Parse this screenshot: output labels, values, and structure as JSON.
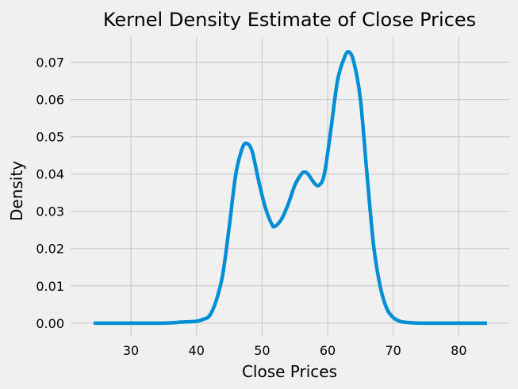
{
  "chart_data": {
    "type": "line",
    "title": "Kernel Density Estimate of Close Prices",
    "xlabel": "Close Prices",
    "ylabel": "Density",
    "xlim": [
      20.8,
      87.7
    ],
    "ylim": [
      -0.00365,
      0.0767
    ],
    "x_ticks": [
      30,
      40,
      50,
      60,
      70,
      80
    ],
    "x_tick_labels": [
      "30",
      "40",
      "50",
      "60",
      "70",
      "80"
    ],
    "y_ticks": [
      0.0,
      0.01,
      0.02,
      0.03,
      0.04,
      0.05,
      0.06,
      0.07
    ],
    "y_tick_labels": [
      "0.00",
      "0.01",
      "0.02",
      "0.03",
      "0.04",
      "0.05",
      "0.06",
      "0.07"
    ],
    "grid": true,
    "series": [
      {
        "color": "#008fd5",
        "x": [
          24.3,
          30,
          35,
          38,
          40,
          41,
          42,
          43,
          44,
          45,
          46,
          47,
          47.7,
          48.5,
          49.5,
          50.5,
          51.5,
          52,
          53,
          54,
          55,
          56,
          56.5,
          57,
          58,
          58.7,
          59.5,
          60.5,
          61.5,
          62.5,
          63.2,
          64,
          65,
          66,
          67,
          68,
          69,
          70,
          71,
          72,
          74,
          78,
          84.3
        ],
        "y": [
          0.0,
          0.0,
          0.0,
          0.0003,
          0.0005,
          0.001,
          0.002,
          0.006,
          0.013,
          0.026,
          0.04,
          0.047,
          0.0482,
          0.046,
          0.038,
          0.031,
          0.0265,
          0.026,
          0.028,
          0.032,
          0.037,
          0.04,
          0.0405,
          0.04,
          0.0375,
          0.037,
          0.04,
          0.052,
          0.065,
          0.071,
          0.0728,
          0.07,
          0.06,
          0.04,
          0.021,
          0.01,
          0.004,
          0.0015,
          0.0005,
          0.0002,
          0.0,
          0.0,
          0.0
        ]
      }
    ]
  }
}
